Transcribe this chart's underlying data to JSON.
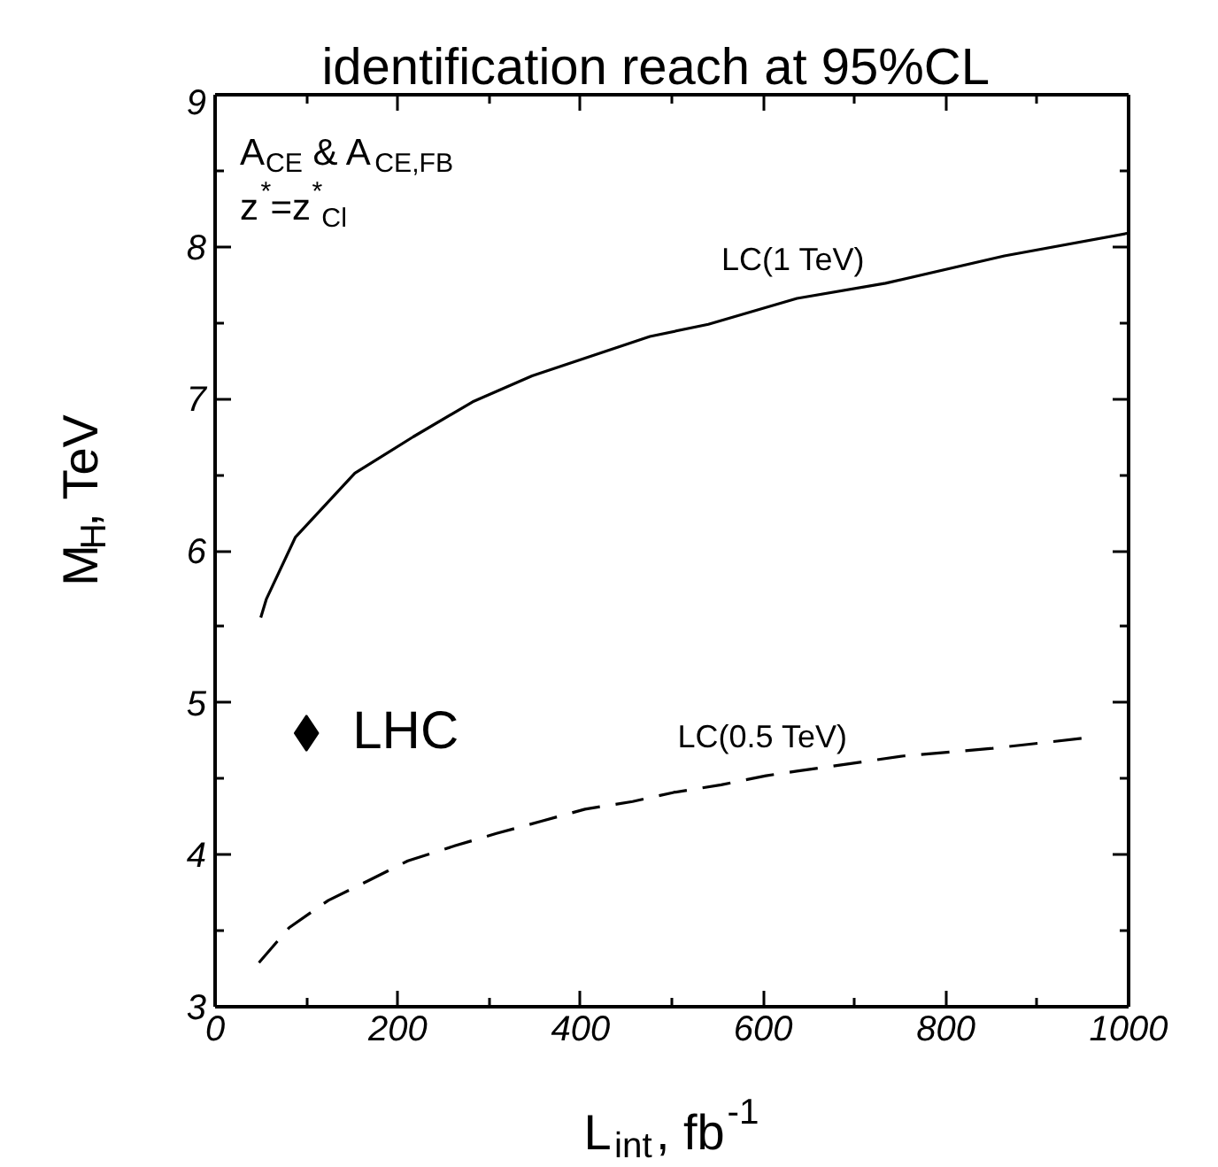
{
  "chart_data": {
    "type": "line",
    "title": "identification reach at 95%CL",
    "xlabel": "L$_{int}$, fb$^{-1}$",
    "ylabel": "M$_{H}$, TeV",
    "xlim": [
      0,
      1000
    ],
    "ylim": [
      3,
      9
    ],
    "xticks": [
      0,
      200,
      400,
      600,
      800,
      1000
    ],
    "yticks": [
      3,
      4,
      5,
      6,
      7,
      8,
      9
    ],
    "grid": false,
    "annotations": [
      "A$_{CE}$ & A$_{CE,FB}$",
      "z$^{*}$=z$^{*}$$_{Cl}$"
    ],
    "series": [
      {
        "name": "LC(1 TeV)",
        "color": "#000000",
        "line_style": "solid",
        "marker": "none",
        "x": [
          50,
          56,
          88,
          153,
          217,
          282,
          347,
          476,
          540,
          637,
          734,
          864,
          1000
        ],
        "values": [
          5.56,
          5.68,
          6.09,
          6.51,
          6.75,
          6.98,
          7.15,
          7.41,
          7.49,
          7.66,
          7.76,
          7.94,
          8.09
        ]
      },
      {
        "name": "LC(0.5 TeV)",
        "color": "#000000",
        "line_style": "dashed",
        "marker": "none",
        "x": [
          48,
          81,
          124,
          168,
          211,
          263,
          308,
          357,
          405,
          457,
          502,
          554,
          603,
          637,
          754,
          851,
          955
        ],
        "values": [
          3.29,
          3.52,
          3.7,
          3.83,
          3.96,
          4.06,
          4.14,
          4.22,
          4.3,
          4.35,
          4.41,
          4.46,
          4.52,
          4.55,
          4.65,
          4.7,
          4.77
        ]
      },
      {
        "name": "LHC",
        "type": "scatter",
        "color": "#000000",
        "marker": "diamond",
        "x": [
          100
        ],
        "values": [
          4.8
        ]
      }
    ]
  }
}
